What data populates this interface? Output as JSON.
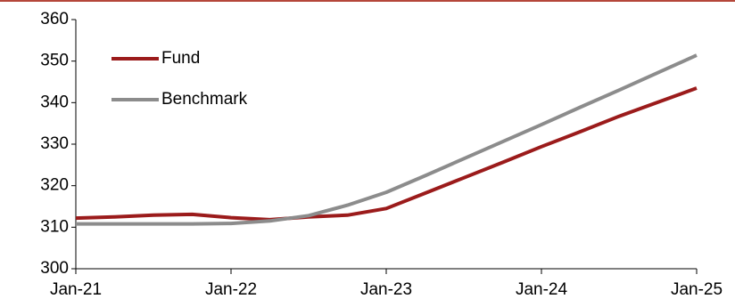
{
  "chart_data": {
    "type": "line",
    "x": [
      "2021-01",
      "2021-04",
      "2021-07",
      "2021-10",
      "2022-01",
      "2022-04",
      "2022-07",
      "2022-10",
      "2023-01",
      "2023-04",
      "2023-07",
      "2023-10",
      "2024-01",
      "2024-04",
      "2024-07",
      "2024-10",
      "2025-01"
    ],
    "series": [
      {
        "name": "Fund",
        "color": "#9b1b1b",
        "values": [
          312.2,
          312.5,
          312.9,
          313.1,
          312.3,
          311.8,
          312.5,
          312.9,
          314.5,
          318.2,
          321.9,
          325.6,
          329.4,
          333.0,
          336.7,
          340.1,
          343.5
        ]
      },
      {
        "name": "Benchmark",
        "color": "#8c8c8c",
        "values": [
          310.8,
          310.8,
          310.8,
          310.8,
          310.9,
          311.5,
          312.8,
          315.3,
          318.4,
          322.4,
          326.5,
          330.6,
          334.7,
          338.9,
          343.0,
          347.2,
          351.4
        ]
      }
    ],
    "xlim": [
      "2021-01",
      "2025-01"
    ],
    "xticks": [
      {
        "value": "2021-01",
        "label": "Jan-21"
      },
      {
        "value": "2022-01",
        "label": "Jan-22"
      },
      {
        "value": "2023-01",
        "label": "Jan-23"
      },
      {
        "value": "2024-01",
        "label": "Jan-24"
      },
      {
        "value": "2025-01",
        "label": "Jan-25"
      }
    ],
    "ylim": [
      300,
      360
    ],
    "yticks": [
      300,
      310,
      320,
      330,
      340,
      350,
      360
    ],
    "legend": "upper-left"
  }
}
